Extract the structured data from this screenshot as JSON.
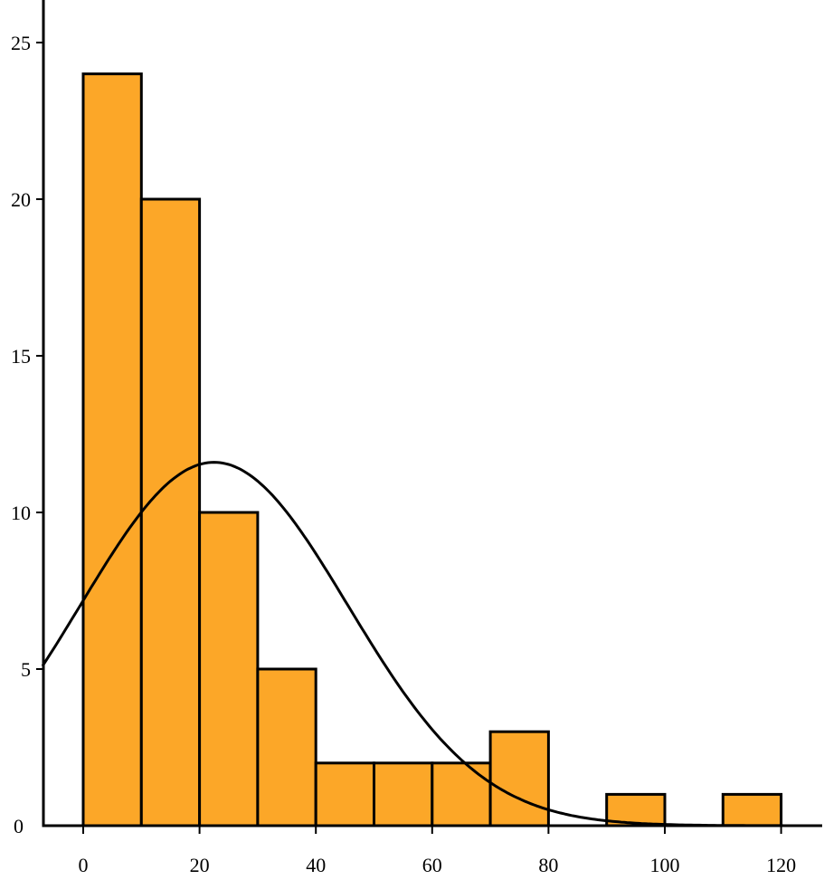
{
  "chart_data": {
    "type": "bar",
    "title": "",
    "xlabel": "",
    "ylabel": "",
    "bins": [
      {
        "start": 0,
        "end": 10,
        "count": 24
      },
      {
        "start": 10,
        "end": 20,
        "count": 20
      },
      {
        "start": 20,
        "end": 30,
        "count": 10
      },
      {
        "start": 30,
        "end": 40,
        "count": 5
      },
      {
        "start": 40,
        "end": 50,
        "count": 2
      },
      {
        "start": 50,
        "end": 60,
        "count": 2
      },
      {
        "start": 60,
        "end": 70,
        "count": 2
      },
      {
        "start": 70,
        "end": 80,
        "count": 3
      },
      {
        "start": 90,
        "end": 100,
        "count": 1
      },
      {
        "start": 110,
        "end": 120,
        "count": 1
      }
    ],
    "curve": {
      "type": "normal-density",
      "mean": 22.5,
      "sd": 23,
      "peak": 11.6
    },
    "xlim": [
      -7,
      127
    ],
    "ylim": [
      0,
      26
    ],
    "x_ticks": [
      0,
      20,
      40,
      60,
      80,
      100,
      120
    ],
    "y_ticks": [
      0,
      5,
      10,
      15,
      20,
      25
    ],
    "x_tick_labels": [
      "0",
      "20",
      "40",
      "60",
      "80",
      "100",
      "120"
    ],
    "y_tick_labels": [
      "0",
      "5",
      "10",
      "15",
      "20",
      "25"
    ],
    "grid": false,
    "colors": {
      "bar_fill": "#FCA728",
      "bar_stroke": "#000000",
      "curve": "#000000",
      "axis": "#000000"
    }
  }
}
